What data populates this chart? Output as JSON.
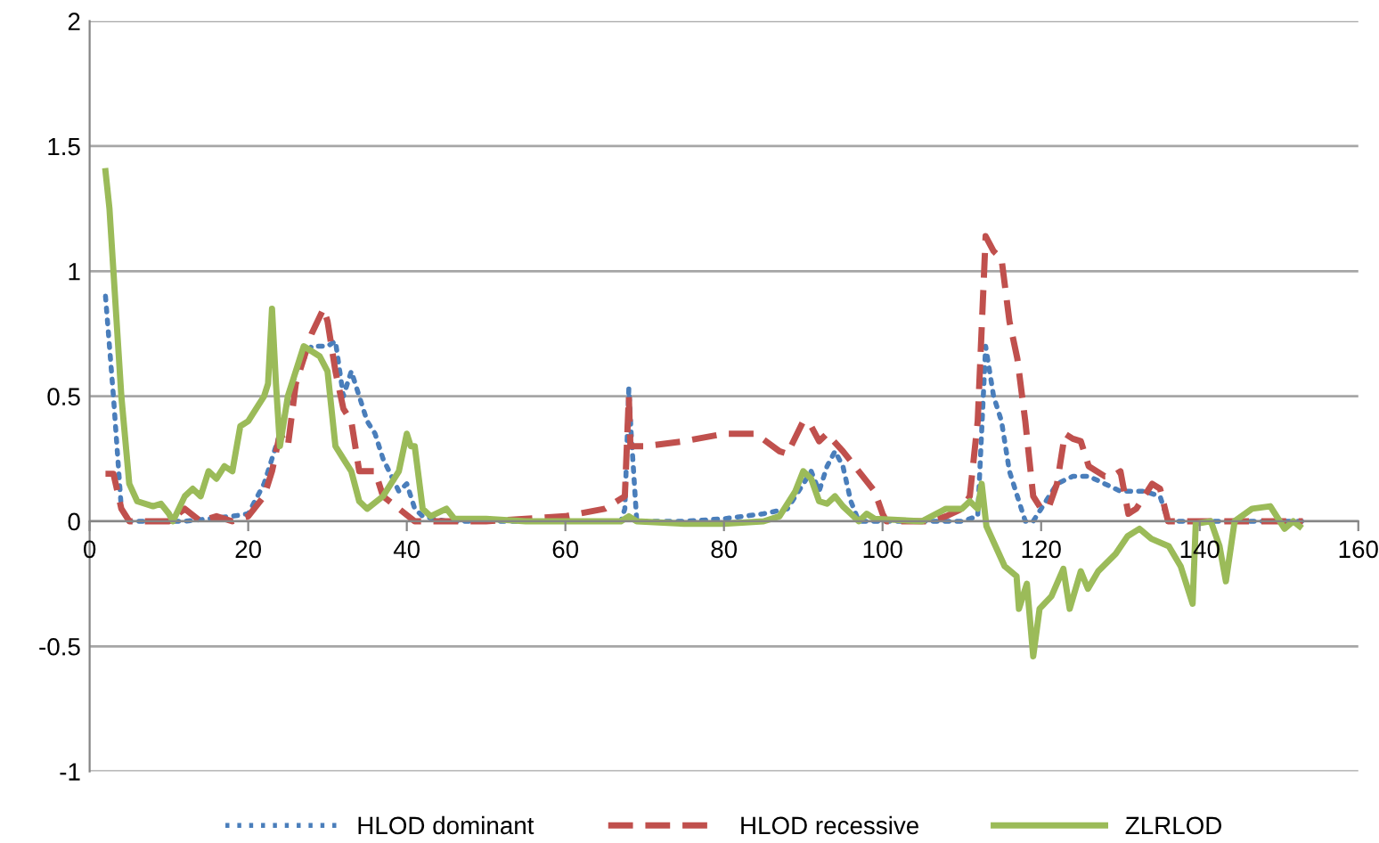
{
  "chart_data": {
    "type": "line",
    "xlim": [
      0,
      160
    ],
    "xticks": [
      0,
      20,
      40,
      60,
      80,
      100,
      120,
      140,
      160
    ],
    "ylim": [
      -1,
      2
    ],
    "yticks": [
      {
        "value": -1,
        "label": "-1"
      },
      {
        "value": -0.5,
        "label": "-0.5"
      },
      0,
      0.5,
      1,
      1.5,
      2
    ],
    "grid": "y",
    "legend": "bottom",
    "series": [
      {
        "name": "HLOD dominant",
        "color": "#4a7ebb",
        "line_style": "dotted",
        "x": [
          2,
          3,
          4,
          5,
          12,
          18,
          20,
          22,
          23,
          24,
          26,
          28,
          30,
          31,
          32,
          33,
          34,
          35,
          36,
          37,
          39,
          40,
          41,
          42,
          45,
          50,
          60,
          67,
          67.5,
          68,
          68.3,
          69,
          75,
          80,
          85,
          88,
          90,
          91,
          92,
          93,
          94,
          95,
          96,
          97,
          100,
          110,
          112,
          113,
          114,
          115,
          116,
          117,
          118,
          119,
          120,
          122,
          124,
          126,
          128,
          130,
          133,
          135,
          136,
          153
        ],
        "values": [
          0.9,
          0.5,
          0.05,
          0.0,
          0.0,
          0.02,
          0.03,
          0.15,
          0.25,
          0.35,
          0.6,
          0.7,
          0.7,
          0.72,
          0.5,
          0.6,
          0.5,
          0.4,
          0.35,
          0.25,
          0.12,
          0.15,
          0.05,
          0.02,
          0.0,
          0.0,
          0.0,
          0.0,
          0.05,
          0.53,
          0.35,
          0.0,
          0.0,
          0.01,
          0.03,
          0.05,
          0.15,
          0.2,
          0.12,
          0.22,
          0.28,
          0.22,
          0.08,
          0.0,
          0.0,
          0.0,
          0.02,
          0.7,
          0.5,
          0.4,
          0.2,
          0.1,
          0.0,
          0.0,
          0.05,
          0.15,
          0.18,
          0.18,
          0.15,
          0.12,
          0.12,
          0.1,
          0.0,
          0.0
        ]
      },
      {
        "name": "HLOD recessive",
        "color": "#c0504d",
        "line_style": "dashed",
        "x": [
          2,
          3,
          4,
          5,
          10,
          12,
          14,
          16,
          18,
          20,
          22,
          23,
          24,
          25,
          26,
          28,
          29.5,
          30,
          31,
          32,
          33,
          34,
          36,
          37,
          39,
          41,
          50,
          60,
          65,
          67.5,
          68,
          68.2,
          70,
          75,
          80,
          84,
          87,
          88,
          90,
          91,
          92,
          93,
          95,
          97,
          99,
          100,
          100.5,
          106,
          108,
          110,
          111,
          112,
          113,
          114,
          115,
          116,
          117,
          118,
          119,
          120,
          121,
          122,
          123,
          124,
          125,
          126,
          128,
          129,
          130,
          131,
          132,
          133,
          134,
          135,
          136,
          140,
          153
        ],
        "values": [
          0.19,
          0.19,
          0.05,
          0.0,
          0.0,
          0.05,
          0.0,
          0.02,
          0.0,
          0.02,
          0.1,
          0.2,
          0.35,
          0.3,
          0.55,
          0.75,
          0.85,
          0.8,
          0.6,
          0.45,
          0.4,
          0.2,
          0.2,
          0.1,
          0.05,
          0.0,
          0.0,
          0.02,
          0.05,
          0.1,
          0.5,
          0.3,
          0.3,
          0.32,
          0.35,
          0.35,
          0.28,
          0.27,
          0.4,
          0.38,
          0.32,
          0.35,
          0.28,
          0.2,
          0.12,
          0.03,
          0.0,
          0.0,
          0.02,
          0.05,
          0.1,
          0.4,
          1.14,
          1.08,
          1.05,
          0.8,
          0.65,
          0.4,
          0.1,
          0.05,
          0.06,
          0.15,
          0.35,
          0.33,
          0.32,
          0.22,
          0.18,
          0.18,
          0.2,
          0.03,
          0.05,
          0.1,
          0.15,
          0.13,
          0.0,
          0.0,
          0.0
        ]
      },
      {
        "name": "ZLRLOD",
        "color": "#9bbb59",
        "line_style": "solid",
        "x": [
          2,
          2.5,
          3,
          4,
          5,
          6,
          8,
          9,
          10,
          10.5,
          12,
          13,
          14,
          15,
          16,
          17,
          18,
          19,
          20,
          21,
          22,
          22.5,
          23,
          23.5,
          24,
          25,
          27,
          29,
          30,
          31,
          32,
          33,
          34,
          35,
          37,
          38,
          39,
          40,
          40.5,
          41,
          42,
          43,
          45,
          46,
          50,
          55,
          60,
          67,
          68,
          69,
          75,
          80,
          85,
          87,
          89,
          90,
          91,
          92,
          93,
          94,
          95,
          96,
          97,
          98,
          99,
          105,
          108,
          110,
          111,
          112,
          112.5,
          113.1,
          115.4,
          116.9,
          117.2,
          118.2,
          119,
          119.8,
          121.3,
          122.8,
          123.6,
          125,
          125.9,
          127.2,
          129.4,
          130.9,
          132.4,
          133.9,
          136.1,
          137.6,
          139.1,
          139.5,
          141.4,
          142.5,
          143.3,
          144.4,
          146.6,
          148.9,
          150.7,
          151.8,
          152.6
        ],
        "values": [
          1.4,
          1.25,
          1.0,
          0.5,
          0.15,
          0.08,
          0.06,
          0.07,
          0.03,
          0.0,
          0.1,
          0.13,
          0.1,
          0.2,
          0.17,
          0.22,
          0.2,
          0.38,
          0.4,
          0.45,
          0.5,
          0.55,
          0.85,
          0.55,
          0.3,
          0.5,
          0.7,
          0.66,
          0.6,
          0.3,
          0.25,
          0.2,
          0.08,
          0.05,
          0.1,
          0.15,
          0.2,
          0.35,
          0.3,
          0.3,
          0.05,
          0.02,
          0.05,
          0.01,
          0.01,
          0.0,
          0.0,
          0.0,
          0.02,
          0.0,
          -0.01,
          -0.01,
          0.0,
          0.02,
          0.12,
          0.2,
          0.17,
          0.08,
          0.07,
          0.1,
          0.06,
          0.03,
          0.0,
          0.03,
          0.01,
          0.0,
          0.05,
          0.05,
          0.08,
          0.05,
          0.15,
          -0.02,
          -0.18,
          -0.22,
          -0.35,
          -0.25,
          -0.54,
          -0.35,
          -0.3,
          -0.19,
          -0.35,
          -0.2,
          -0.27,
          -0.2,
          -0.13,
          -0.06,
          -0.03,
          -0.07,
          -0.1,
          -0.18,
          -0.33,
          -0.01,
          0.0,
          -0.1,
          -0.24,
          0.0,
          0.05,
          0.06,
          -0.03,
          0.0,
          -0.02
        ]
      }
    ]
  }
}
